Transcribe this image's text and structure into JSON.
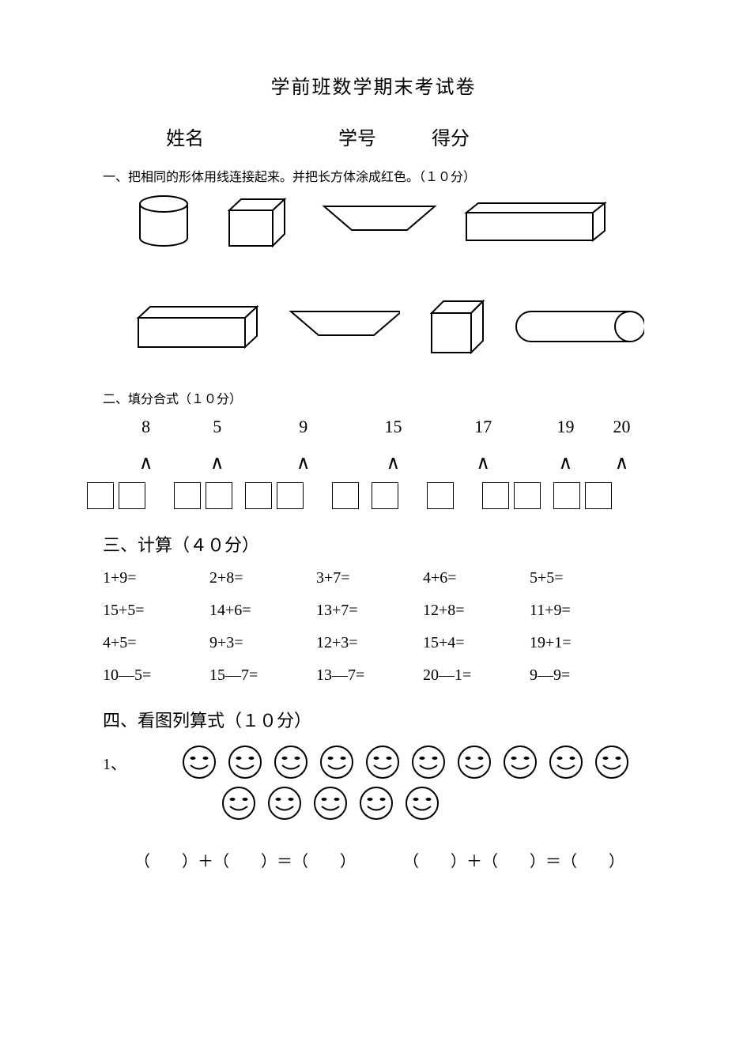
{
  "title": "学前班数学期末考试卷",
  "header": {
    "name": "姓名",
    "id": "学号",
    "score": "得分"
  },
  "q1": {
    "label": "一、把相同的形体用线连接起来。并把长方体涂成红色。（１０分）"
  },
  "q2": {
    "label": "二、填分合式（１０分）",
    "numbers": [
      "8",
      "5",
      "9",
      "15",
      "17",
      "19",
      "20"
    ],
    "num_widths": [
      90,
      100,
      130,
      110,
      130,
      90,
      60
    ],
    "wedge_widths": [
      90,
      100,
      130,
      110,
      130,
      90,
      60
    ]
  },
  "q3": {
    "label": "三、计算（４０分）",
    "rows": [
      [
        "1+9=",
        "2+8=",
        "3+7=",
        "4+6=",
        "5+5="
      ],
      [
        "15+5=",
        "14+6=",
        "13+7=",
        "12+8=",
        "11+9="
      ],
      [
        "4+5=",
        "9+3=",
        "12+3=",
        "15+4=",
        "19+1="
      ],
      [
        "10—5=",
        "15—7=",
        "13—7=",
        "20—1=",
        "9—9="
      ]
    ]
  },
  "q4": {
    "label": "四、看图列算式（１０分）",
    "item": "1、",
    "row1_count": 10,
    "row2_count": 5,
    "eq1": "（　　）＋（　　）＝（　　）",
    "eq2": "（　　）＋（　　）＝（　　）"
  },
  "colors": {
    "stroke": "#000000",
    "bg": "#ffffff"
  }
}
